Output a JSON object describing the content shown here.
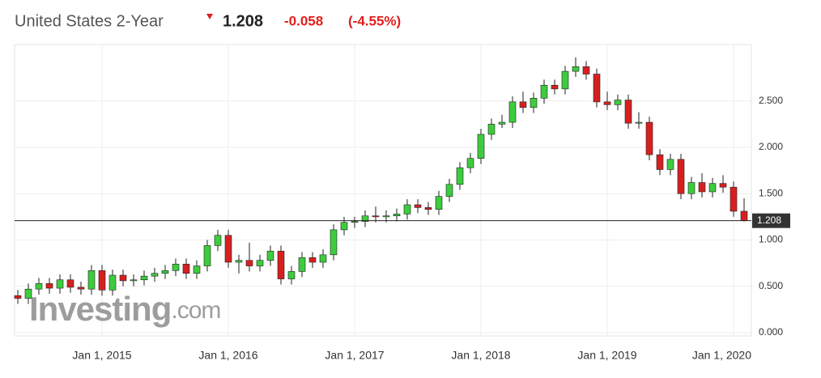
{
  "chart_data": {
    "type": "candlestick",
    "title": "United States 2-Year",
    "price": 1.208,
    "change": -0.058,
    "change_pct": "(-4.55%)",
    "watermark": "Investing",
    "watermark_suffix": ".com",
    "up_color": "#3dcc3d",
    "down_color": "#d81f1f",
    "grid": true,
    "x": [
      "2014-05",
      "2014-06",
      "2014-07",
      "2014-08",
      "2014-09",
      "2014-10",
      "2014-11",
      "2014-12",
      "2015-01",
      "2015-02",
      "2015-03",
      "2015-04",
      "2015-05",
      "2015-06",
      "2015-07",
      "2015-08",
      "2015-09",
      "2015-10",
      "2015-11",
      "2015-12",
      "2016-01",
      "2016-02",
      "2016-03",
      "2016-04",
      "2016-05",
      "2016-06",
      "2016-07",
      "2016-08",
      "2016-09",
      "2016-10",
      "2016-11",
      "2016-12",
      "2017-01",
      "2017-02",
      "2017-03",
      "2017-04",
      "2017-05",
      "2017-06",
      "2017-07",
      "2017-08",
      "2017-09",
      "2017-10",
      "2017-11",
      "2017-12",
      "2018-01",
      "2018-02",
      "2018-03",
      "2018-04",
      "2018-05",
      "2018-06",
      "2018-07",
      "2018-08",
      "2018-09",
      "2018-10",
      "2018-11",
      "2018-12",
      "2019-01",
      "2019-02",
      "2019-03",
      "2019-04",
      "2019-05",
      "2019-06",
      "2019-07",
      "2019-08",
      "2019-09",
      "2019-10",
      "2019-11",
      "2019-12",
      "2020-01",
      "2020-02"
    ],
    "open": [
      0.4,
      0.37,
      0.47,
      0.53,
      0.48,
      0.57,
      0.49,
      0.47,
      0.67,
      0.46,
      0.62,
      0.56,
      0.57,
      0.61,
      0.64,
      0.67,
      0.74,
      0.64,
      0.72,
      0.94,
      1.05,
      0.76,
      0.78,
      0.72,
      0.78,
      0.88,
      0.58,
      0.66,
      0.81,
      0.76,
      0.84,
      1.11,
      1.19,
      1.2,
      1.26,
      1.25,
      1.26,
      1.28,
      1.38,
      1.35,
      1.33,
      1.47,
      1.6,
      1.78,
      1.88,
      2.14,
      2.25,
      2.27,
      2.49,
      2.43,
      2.53,
      2.67,
      2.63,
      2.82,
      2.87,
      2.79,
      2.49,
      2.46,
      2.51,
      2.26,
      2.27,
      1.92,
      1.76,
      1.87,
      1.5,
      1.62,
      1.52,
      1.61,
      1.57,
      1.31
    ],
    "high": [
      0.46,
      0.53,
      0.59,
      0.59,
      0.63,
      0.63,
      0.55,
      0.73,
      0.73,
      0.68,
      0.68,
      0.63,
      0.67,
      0.7,
      0.73,
      0.8,
      0.8,
      0.78,
      1.0,
      1.11,
      1.11,
      0.84,
      0.97,
      0.84,
      0.94,
      0.94,
      0.72,
      0.87,
      0.87,
      0.9,
      1.17,
      1.25,
      1.25,
      1.32,
      1.36,
      1.32,
      1.34,
      1.44,
      1.44,
      1.41,
      1.53,
      1.66,
      1.84,
      1.94,
      2.2,
      2.31,
      2.35,
      2.55,
      2.6,
      2.59,
      2.73,
      2.73,
      2.88,
      2.97,
      2.93,
      2.85,
      2.6,
      2.57,
      2.57,
      2.38,
      2.33,
      1.98,
      1.93,
      1.93,
      1.68,
      1.72,
      1.67,
      1.7,
      1.63,
      1.45
    ],
    "low": [
      0.31,
      0.31,
      0.41,
      0.42,
      0.42,
      0.43,
      0.41,
      0.41,
      0.4,
      0.4,
      0.5,
      0.5,
      0.51,
      0.55,
      0.58,
      0.61,
      0.58,
      0.58,
      0.66,
      0.88,
      0.7,
      0.64,
      0.66,
      0.66,
      0.72,
      0.52,
      0.52,
      0.6,
      0.7,
      0.7,
      0.78,
      1.05,
      1.13,
      1.14,
      1.19,
      1.19,
      1.2,
      1.22,
      1.29,
      1.27,
      1.27,
      1.41,
      1.54,
      1.72,
      1.82,
      2.08,
      2.21,
      2.21,
      2.37,
      2.37,
      2.47,
      2.57,
      2.57,
      2.76,
      2.73,
      2.43,
      2.4,
      2.4,
      2.2,
      2.2,
      1.86,
      1.7,
      1.7,
      1.44,
      1.44,
      1.46,
      1.46,
      1.51,
      1.25,
      1.2
    ],
    "close": [
      0.37,
      0.47,
      0.53,
      0.48,
      0.57,
      0.49,
      0.47,
      0.67,
      0.46,
      0.62,
      0.56,
      0.57,
      0.61,
      0.64,
      0.67,
      0.74,
      0.64,
      0.72,
      0.94,
      1.05,
      0.76,
      0.78,
      0.72,
      0.78,
      0.88,
      0.58,
      0.66,
      0.81,
      0.76,
      0.84,
      1.11,
      1.19,
      1.2,
      1.26,
      1.25,
      1.26,
      1.28,
      1.38,
      1.35,
      1.33,
      1.47,
      1.6,
      1.78,
      1.88,
      2.14,
      2.25,
      2.27,
      2.49,
      2.43,
      2.53,
      2.67,
      2.63,
      2.82,
      2.87,
      2.79,
      2.49,
      2.46,
      2.51,
      2.26,
      2.27,
      1.92,
      1.76,
      1.87,
      1.5,
      1.62,
      1.52,
      1.61,
      1.57,
      1.31,
      1.208
    ],
    "ylim": [
      -0.035,
      3.109
    ],
    "yticks": [
      {
        "value": 0,
        "label": "0.000"
      },
      {
        "value": 0.5,
        "label": "0.500"
      },
      {
        "value": 1,
        "label": "1.000"
      },
      {
        "value": 1.5,
        "label": "1.500"
      },
      {
        "value": 2,
        "label": "2.000"
      },
      {
        "value": 2.5,
        "label": "2.500"
      }
    ],
    "xticks": [
      {
        "value": "2015-01",
        "label": "Jan 1, 2015"
      },
      {
        "value": "2016-01",
        "label": "Jan 1, 2016"
      },
      {
        "value": "2017-01",
        "label": "Jan 1, 2017"
      },
      {
        "value": "2018-01",
        "label": "Jan 1, 2018"
      },
      {
        "value": "2019-01",
        "label": "Jan 1, 2019"
      },
      {
        "value": "2020-01",
        "label": "Jan 1, 2020"
      }
    ]
  }
}
